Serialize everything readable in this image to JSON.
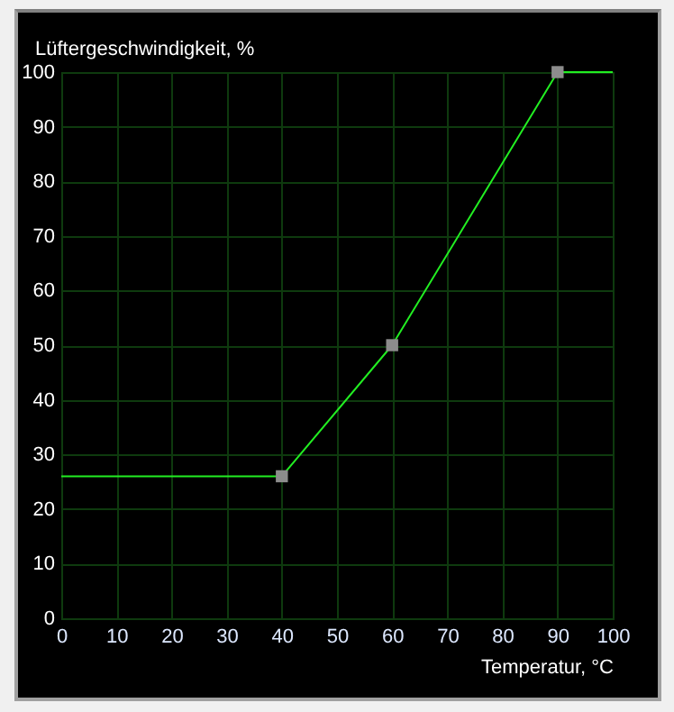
{
  "chart_data": {
    "type": "line",
    "xlabel": "Temperatur, °C",
    "ylabel": "Lüftergeschwindigkeit, %",
    "xlim": [
      0,
      100
    ],
    "ylim": [
      0,
      100
    ],
    "xticks": [
      0,
      10,
      20,
      30,
      40,
      50,
      60,
      70,
      80,
      90,
      100
    ],
    "yticks": [
      0,
      10,
      20,
      30,
      40,
      50,
      60,
      70,
      80,
      90,
      100
    ],
    "grid": true,
    "series": [
      {
        "color": "#22ee22",
        "x": [
          0,
          40,
          60,
          90,
          100
        ],
        "values": [
          26,
          26,
          50,
          100,
          100
        ],
        "marker": "none"
      },
      {
        "type": "scatter",
        "color": "#8c8c8c",
        "x": [
          40,
          60,
          90
        ],
        "values": [
          26,
          50,
          100
        ],
        "marker": "square"
      }
    ]
  }
}
